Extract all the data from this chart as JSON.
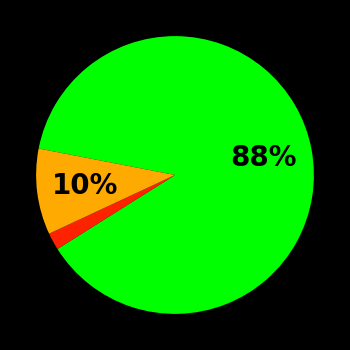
{
  "slices": [
    88,
    2,
    10
  ],
  "colors": [
    "#00ff00",
    "#ff2200",
    "#ffaa00"
  ],
  "labels": [
    "88%",
    "",
    "10%"
  ],
  "background_color": "#000000",
  "text_color": "#000000",
  "startangle": 169,
  "label_distance": 0.65,
  "fontsize": 20,
  "fontweight": "bold"
}
